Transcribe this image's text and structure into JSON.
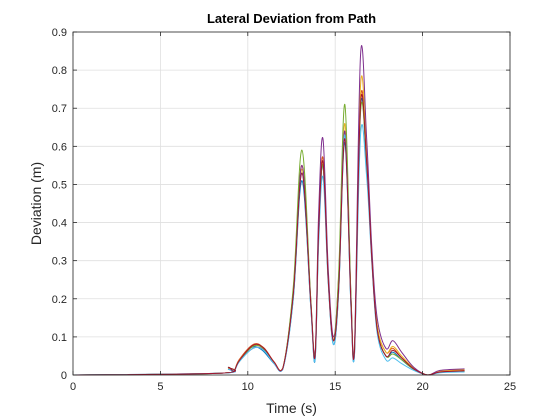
{
  "chart_data": {
    "type": "line",
    "title": "Lateral Deviation from Path",
    "xlabel": "Time (s)",
    "ylabel": "Deviation (m)",
    "xlim": [
      0,
      25
    ],
    "ylim": [
      0,
      0.9
    ],
    "xticks": [
      0,
      5,
      10,
      15,
      20,
      25
    ],
    "yticks": [
      0,
      0.1,
      0.2,
      0.3,
      0.4,
      0.5,
      0.6,
      0.7,
      0.8,
      0.9
    ],
    "grid": true,
    "legend": "none",
    "series": [
      {
        "color": "#0072BD",
        "x": [
          0,
          8.5,
          8.9,
          9.2,
          9.5,
          10.2,
          10.8,
          11.5,
          12.0,
          12.6,
          13.1,
          13.6,
          13.85,
          14.05,
          14.3,
          14.6,
          14.9,
          15.2,
          15.55,
          15.9,
          16.1,
          16.45,
          16.8,
          17.1,
          17.4,
          17.9,
          18.3,
          18.8,
          19.5,
          20.3,
          21.0,
          22.4
        ],
        "y": [
          0,
          0.005,
          0.02,
          0.01,
          0.035,
          0.072,
          0.066,
          0.03,
          0.015,
          0.2,
          0.51,
          0.18,
          0.04,
          0.36,
          0.55,
          0.25,
          0.08,
          0.22,
          0.61,
          0.18,
          0.05,
          0.7,
          0.55,
          0.3,
          0.12,
          0.05,
          0.06,
          0.04,
          0.015,
          0.0,
          0.007,
          0.01
        ]
      },
      {
        "color": "#D95319",
        "x": [
          0,
          8.5,
          8.9,
          9.2,
          9.5,
          10.3,
          10.9,
          11.5,
          12.0,
          12.6,
          13.1,
          13.6,
          13.85,
          14.05,
          14.3,
          14.6,
          14.9,
          15.2,
          15.55,
          15.9,
          16.1,
          16.45,
          16.8,
          17.1,
          17.4,
          17.9,
          18.3,
          18.8,
          19.5,
          20.3,
          21.0,
          22.4
        ],
        "y": [
          0,
          0.005,
          0.02,
          0.01,
          0.04,
          0.08,
          0.072,
          0.035,
          0.018,
          0.22,
          0.55,
          0.19,
          0.05,
          0.38,
          0.57,
          0.26,
          0.09,
          0.24,
          0.64,
          0.2,
          0.06,
          0.72,
          0.57,
          0.31,
          0.13,
          0.06,
          0.07,
          0.045,
          0.017,
          0.0,
          0.008,
          0.012
        ]
      },
      {
        "color": "#EDB120",
        "x": [
          0,
          8.5,
          8.9,
          9.2,
          9.5,
          10.3,
          10.9,
          11.5,
          12.0,
          12.6,
          13.1,
          13.6,
          13.85,
          14.05,
          14.3,
          14.6,
          14.9,
          15.2,
          15.55,
          15.9,
          16.1,
          16.45,
          16.8,
          17.1,
          17.4,
          17.9,
          18.3,
          18.8,
          19.5,
          20.3,
          21.0,
          22.4
        ],
        "y": [
          0,
          0.005,
          0.018,
          0.01,
          0.038,
          0.076,
          0.07,
          0.033,
          0.017,
          0.21,
          0.54,
          0.19,
          0.05,
          0.37,
          0.56,
          0.26,
          0.09,
          0.23,
          0.66,
          0.2,
          0.06,
          0.76,
          0.58,
          0.31,
          0.13,
          0.06,
          0.075,
          0.05,
          0.018,
          0.0,
          0.01,
          0.014
        ]
      },
      {
        "color": "#7E2F8E",
        "x": [
          0,
          8.5,
          8.9,
          9.2,
          9.5,
          10.3,
          10.9,
          11.5,
          12.0,
          12.6,
          13.1,
          13.6,
          13.85,
          14.05,
          14.3,
          14.6,
          14.9,
          15.2,
          15.55,
          15.9,
          16.1,
          16.45,
          16.8,
          17.1,
          17.4,
          17.9,
          18.3,
          18.8,
          19.5,
          20.3,
          21.0,
          22.4
        ],
        "y": [
          0,
          0.005,
          0.015,
          0.01,
          0.035,
          0.07,
          0.066,
          0.03,
          0.015,
          0.22,
          0.55,
          0.2,
          0.06,
          0.42,
          0.62,
          0.28,
          0.1,
          0.26,
          0.64,
          0.21,
          0.07,
          0.84,
          0.62,
          0.33,
          0.15,
          0.07,
          0.09,
          0.06,
          0.02,
          0.0,
          0.012,
          0.016
        ]
      },
      {
        "color": "#77AC30",
        "x": [
          0,
          8.5,
          8.9,
          9.2,
          9.5,
          10.3,
          10.9,
          11.5,
          12.0,
          12.6,
          13.1,
          13.6,
          13.85,
          14.05,
          14.3,
          14.6,
          14.9,
          15.2,
          15.55,
          15.9,
          16.1,
          16.45,
          16.8,
          17.1,
          17.4,
          17.9,
          18.3,
          18.8,
          19.5,
          20.3,
          21.0,
          22.4
        ],
        "y": [
          0,
          0.005,
          0.02,
          0.01,
          0.036,
          0.075,
          0.069,
          0.032,
          0.016,
          0.23,
          0.59,
          0.2,
          0.05,
          0.36,
          0.55,
          0.25,
          0.09,
          0.27,
          0.71,
          0.21,
          0.06,
          0.69,
          0.55,
          0.3,
          0.12,
          0.05,
          0.055,
          0.04,
          0.015,
          0.0,
          0.007,
          0.01
        ]
      },
      {
        "color": "#4DBEEE",
        "x": [
          0,
          8.5,
          8.9,
          9.2,
          9.5,
          10.3,
          10.9,
          11.5,
          12.0,
          12.6,
          13.1,
          13.6,
          13.85,
          14.05,
          14.3,
          14.6,
          14.9,
          15.2,
          15.55,
          15.9,
          16.1,
          16.45,
          16.8,
          17.1,
          17.4,
          17.9,
          18.3,
          18.8,
          19.5,
          20.3,
          21.0,
          22.4
        ],
        "y": [
          0,
          0.005,
          0.015,
          0.01,
          0.034,
          0.07,
          0.065,
          0.03,
          0.015,
          0.2,
          0.53,
          0.18,
          0.04,
          0.34,
          0.52,
          0.24,
          0.08,
          0.22,
          0.63,
          0.18,
          0.05,
          0.63,
          0.52,
          0.29,
          0.11,
          0.04,
          0.045,
          0.03,
          0.012,
          0.0,
          0.006,
          0.008
        ]
      },
      {
        "color": "#A2142F",
        "x": [
          0,
          8.5,
          8.9,
          9.2,
          9.5,
          10.3,
          10.9,
          11.5,
          12.0,
          12.6,
          13.1,
          13.6,
          13.85,
          14.05,
          14.3,
          14.6,
          14.9,
          15.2,
          15.55,
          15.9,
          16.1,
          16.45,
          16.8,
          17.1,
          17.4,
          17.9,
          18.3,
          18.8,
          19.5,
          20.3,
          21.0,
          22.4
        ],
        "y": [
          0,
          0.005,
          0.02,
          0.01,
          0.037,
          0.078,
          0.071,
          0.034,
          0.017,
          0.21,
          0.53,
          0.19,
          0.05,
          0.37,
          0.56,
          0.25,
          0.09,
          0.23,
          0.62,
          0.19,
          0.06,
          0.71,
          0.56,
          0.3,
          0.12,
          0.05,
          0.065,
          0.045,
          0.016,
          0.0,
          0.008,
          0.011
        ]
      }
    ]
  }
}
